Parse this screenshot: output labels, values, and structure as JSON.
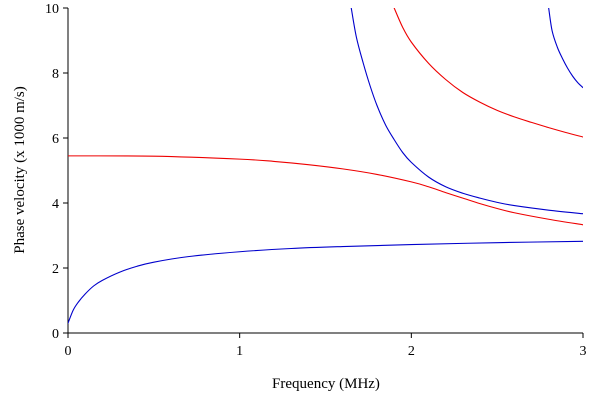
{
  "chart_data": {
    "type": "line",
    "title": "",
    "xlabel": "Frequency (MHz)",
    "ylabel": "Phase velocity (x 1000 m/s)",
    "xlim": [
      0,
      3
    ],
    "ylim": [
      0,
      10
    ],
    "xticks": [
      "0",
      "1",
      "2",
      "3"
    ],
    "yticks": [
      "0",
      "2",
      "4",
      "6",
      "8",
      "10"
    ],
    "grid": false,
    "legend": "none",
    "colors": {
      "blue": "#0000cc",
      "red": "#ee0000"
    },
    "series": [
      {
        "color": "blue",
        "x": [
          0,
          0.03,
          0.06,
          0.1,
          0.15,
          0.2,
          0.3,
          0.4,
          0.5,
          0.7,
          1.0,
          1.3,
          1.6,
          2.0,
          2.5,
          3.0
        ],
        "y": [
          0.3,
          0.7,
          0.95,
          1.2,
          1.45,
          1.62,
          1.87,
          2.05,
          2.18,
          2.35,
          2.5,
          2.6,
          2.66,
          2.72,
          2.78,
          2.82
        ]
      },
      {
        "color": "red",
        "x": [
          0,
          0.5,
          1.0,
          1.2,
          1.4,
          1.6,
          1.8,
          2.0,
          2.1,
          2.2,
          2.3,
          2.4,
          2.5,
          2.6,
          2.8,
          3.0
        ],
        "y": [
          5.45,
          5.44,
          5.35,
          5.28,
          5.18,
          5.05,
          4.88,
          4.65,
          4.5,
          4.32,
          4.15,
          3.98,
          3.83,
          3.7,
          3.5,
          3.33
        ]
      },
      {
        "color": "blue",
        "x": [
          1.65,
          1.68,
          1.72,
          1.76,
          1.8,
          1.85,
          1.9,
          1.95,
          2.0,
          2.1,
          2.2,
          2.3,
          2.4,
          2.5,
          2.6,
          2.8,
          3.0
        ],
        "y": [
          10.0,
          9.1,
          8.3,
          7.6,
          7.0,
          6.4,
          5.95,
          5.55,
          5.25,
          4.8,
          4.5,
          4.3,
          4.15,
          4.02,
          3.92,
          3.78,
          3.67
        ]
      },
      {
        "color": "red",
        "x": [
          1.9,
          1.95,
          2.0,
          2.1,
          2.2,
          2.3,
          2.4,
          2.5,
          2.6,
          2.7,
          2.8,
          2.9,
          3.0
        ],
        "y": [
          10.0,
          9.4,
          8.95,
          8.3,
          7.8,
          7.4,
          7.1,
          6.85,
          6.65,
          6.48,
          6.32,
          6.17,
          6.03
        ]
      },
      {
        "color": "blue",
        "x": [
          2.8,
          2.82,
          2.85,
          2.88,
          2.91,
          2.94,
          2.97,
          3.0
        ],
        "y": [
          10.0,
          9.3,
          8.8,
          8.45,
          8.15,
          7.9,
          7.7,
          7.55
        ]
      }
    ]
  }
}
